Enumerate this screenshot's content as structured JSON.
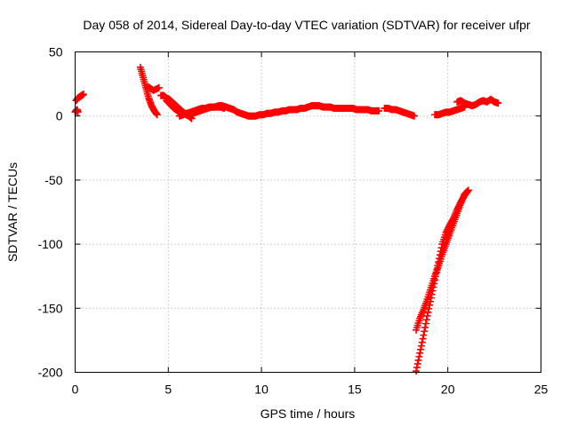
{
  "chart_data": {
    "type": "scatter",
    "title": "Day 058 of 2014, Sidereal Day-to-day VTEC variation (SDTVAR) for receiver ufpr",
    "xlabel": "GPS time / hours",
    "ylabel": "SDTVAR / TECUs",
    "xlim": [
      0,
      25
    ],
    "ylim": [
      -200,
      50
    ],
    "x_ticks": [
      0,
      5,
      10,
      15,
      20,
      25
    ],
    "y_ticks": [
      -200,
      -150,
      -100,
      -50,
      0,
      50
    ],
    "grid": true,
    "legend": "none",
    "marker": "plus",
    "color": "#ff0000",
    "series": [
      {
        "segments": [
          {
            "x": [
              0.0,
              0.05,
              0.1,
              0.15
            ],
            "y": [
              3,
              4,
              5,
              3
            ]
          },
          {
            "x": [
              0.05,
              0.15,
              0.25,
              0.35,
              0.45
            ],
            "y": [
              12,
              14,
              15,
              16,
              17
            ]
          },
          {
            "x": [
              3.5,
              3.65,
              3.8,
              3.95,
              4.1,
              4.25,
              4.4
            ],
            "y": [
              38,
              30,
              22,
              14,
              8,
              4,
              1
            ]
          },
          {
            "x": [
              3.9,
              4.2,
              4.5
            ],
            "y": [
              23,
              20,
              22
            ]
          },
          {
            "x": [
              4.6,
              4.75,
              4.9,
              5.05,
              5.2,
              5.35,
              5.5,
              5.65,
              5.8,
              5.95,
              6.1,
              6.25
            ],
            "y": [
              16,
              16,
              14,
              13,
              11,
              9,
              7,
              5,
              3,
              1,
              0,
              -2
            ]
          },
          {
            "x": [
              4.9,
              5.1,
              5.3,
              5.5,
              5.7,
              5.9,
              6.1,
              6.3,
              6.5,
              6.7,
              6.9,
              7.1,
              7.3,
              7.5,
              7.7,
              7.9,
              8.1,
              8.3,
              8.5,
              8.7,
              8.9,
              9.1,
              9.3,
              9.5,
              9.7,
              9.9,
              10.1,
              10.3,
              10.5,
              10.7,
              10.9,
              11.1,
              11.3,
              11.5,
              11.7,
              11.9,
              12.1,
              12.3,
              12.5,
              12.7,
              12.9,
              13.1,
              13.3,
              13.5,
              13.7,
              13.9,
              14.1,
              14.3,
              14.5,
              14.7,
              14.9,
              15.1,
              15.3,
              15.5,
              15.7,
              15.9,
              16.1,
              16.3
            ],
            "y": [
              12,
              9,
              6,
              4,
              3,
              2,
              2,
              2,
              3,
              4,
              5,
              6,
              7,
              7,
              8,
              8,
              7,
              6,
              5,
              3,
              2,
              1,
              0,
              0,
              0,
              1,
              1,
              2,
              2,
              3,
              3,
              4,
              4,
              5,
              5,
              5,
              6,
              6,
              7,
              8,
              8,
              8,
              7,
              7,
              7,
              6,
              6,
              6,
              6,
              6,
              6,
              5,
              5,
              5,
              5,
              4,
              4,
              4
            ]
          },
          {
            "x": [
              5.6,
              5.8,
              6.0,
              6.2,
              6.4,
              6.6,
              6.8,
              7.0,
              7.2,
              7.4,
              7.6,
              7.8,
              8.0
            ],
            "y": [
              0,
              1,
              2,
              3,
              4,
              5,
              6,
              6,
              7,
              7,
              7,
              7,
              6
            ]
          },
          {
            "x": [
              16.6,
              16.8,
              17.0,
              17.2,
              17.4,
              17.6,
              17.8,
              18.0,
              18.2
            ],
            "y": [
              6,
              6,
              5,
              5,
              4,
              3,
              2,
              1,
              0
            ]
          },
          {
            "x": [
              19.3,
              19.5,
              19.7,
              19.9,
              20.1,
              20.3,
              20.5,
              20.7,
              20.9
            ],
            "y": [
              1,
              1,
              2,
              3,
              3,
              4,
              5,
              6,
              7
            ]
          },
          {
            "x": [
              20.5,
              20.7,
              20.9,
              21.1,
              21.3,
              21.5,
              21.7,
              21.9,
              22.1,
              22.3,
              22.5,
              22.7
            ],
            "y": [
              11,
              12,
              10,
              9,
              8,
              9,
              11,
              12,
              11,
              13,
              11,
              10
            ]
          },
          {
            "x": [
              18.3,
              18.5,
              18.7,
              18.9,
              19.1,
              19.3,
              19.5,
              19.7,
              19.9,
              20.1,
              20.3,
              20.5,
              20.7,
              20.9,
              21.1
            ],
            "y": [
              -199,
              -185,
              -171,
              -156,
              -142,
              -128,
              -114,
              -100,
              -91,
              -85,
              -80,
              -73,
              -67,
              -62,
              -58
            ]
          },
          {
            "x": [
              18.3,
              18.5,
              18.7,
              18.9,
              19.1,
              19.3,
              19.5,
              19.7,
              19.9,
              20.1,
              20.3,
              20.5,
              20.7,
              20.9,
              21.1
            ],
            "y": [
              -167,
              -158,
              -151,
              -143,
              -134,
              -125,
              -117,
              -108,
              -100,
              -92,
              -84,
              -76,
              -68,
              -61,
              -58
            ]
          }
        ]
      }
    ]
  }
}
